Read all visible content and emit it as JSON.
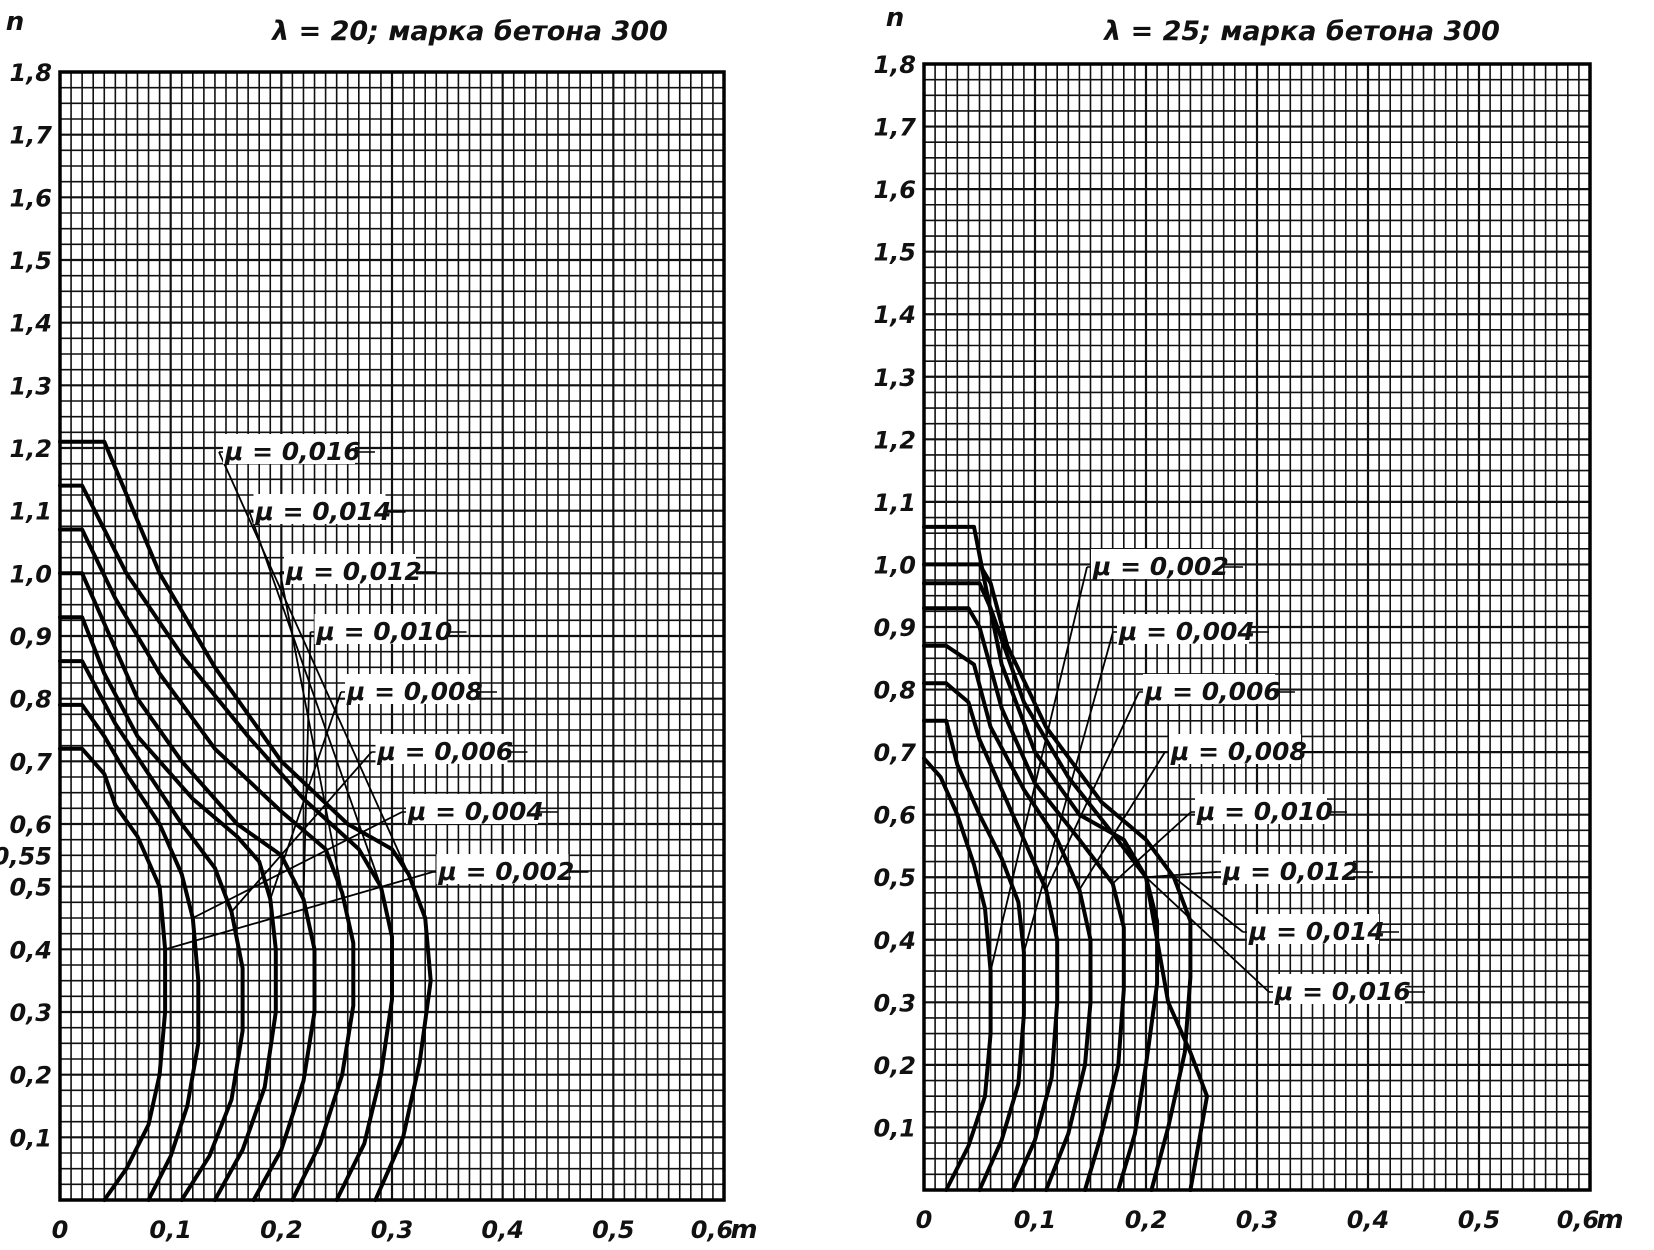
{
  "chart_data": [
    {
      "type": "line",
      "title": "λ = 20; марка бетона 300",
      "xlabel": "m",
      "ylabel": "n",
      "xlim": [
        0,
        0.6
      ],
      "ylim": [
        0,
        1.8
      ],
      "x_ticks": [
        "0",
        "0,1",
        "0,2",
        "0,3",
        "0,4",
        "0,5",
        "0,6"
      ],
      "y_ticks": [
        "0,1",
        "0,2",
        "0,3",
        "0,4",
        "0,5",
        "0,55",
        "0,6",
        "0,7",
        "0,8",
        "0,9",
        "1,0",
        "1,1",
        "1,2",
        "1,3",
        "1,4",
        "1,5",
        "1,6",
        "1,7",
        "1,8"
      ],
      "grid": true,
      "series": [
        {
          "name": "μ = 0,002",
          "points": [
            [
              0.04,
              0
            ],
            [
              0.06,
              0.05
            ],
            [
              0.08,
              0.12
            ],
            [
              0.09,
              0.2
            ],
            [
              0.095,
              0.3
            ],
            [
              0.095,
              0.4
            ],
            [
              0.09,
              0.5
            ],
            [
              0.07,
              0.58
            ],
            [
              0.05,
              0.63
            ],
            [
              0.04,
              0.68
            ],
            [
              0.02,
              0.72
            ],
            [
              0,
              0.72
            ]
          ]
        },
        {
          "name": "μ = 0,004",
          "points": [
            [
              0.08,
              0
            ],
            [
              0.1,
              0.07
            ],
            [
              0.115,
              0.15
            ],
            [
              0.125,
              0.25
            ],
            [
              0.125,
              0.35
            ],
            [
              0.12,
              0.45
            ],
            [
              0.11,
              0.52
            ],
            [
              0.09,
              0.6
            ],
            [
              0.06,
              0.68
            ],
            [
              0.04,
              0.74
            ],
            [
              0.02,
              0.79
            ],
            [
              0,
              0.79
            ]
          ]
        },
        {
          "name": "μ = 0,006",
          "points": [
            [
              0.11,
              0
            ],
            [
              0.135,
              0.07
            ],
            [
              0.155,
              0.16
            ],
            [
              0.165,
              0.27
            ],
            [
              0.165,
              0.37
            ],
            [
              0.155,
              0.46
            ],
            [
              0.14,
              0.53
            ],
            [
              0.11,
              0.6
            ],
            [
              0.08,
              0.68
            ],
            [
              0.05,
              0.76
            ],
            [
              0.02,
              0.86
            ],
            [
              0,
              0.86
            ]
          ]
        },
        {
          "name": "μ = 0,008",
          "points": [
            [
              0.14,
              0
            ],
            [
              0.165,
              0.08
            ],
            [
              0.185,
              0.18
            ],
            [
              0.195,
              0.3
            ],
            [
              0.195,
              0.4
            ],
            [
              0.19,
              0.48
            ],
            [
              0.18,
              0.54
            ],
            [
              0.16,
              0.58
            ],
            [
              0.12,
              0.64
            ],
            [
              0.07,
              0.74
            ],
            [
              0.04,
              0.84
            ],
            [
              0.02,
              0.93
            ],
            [
              0,
              0.93
            ]
          ]
        },
        {
          "name": "μ = 0,010",
          "points": [
            [
              0.175,
              0
            ],
            [
              0.2,
              0.08
            ],
            [
              0.22,
              0.19
            ],
            [
              0.23,
              0.3
            ],
            [
              0.23,
              0.4
            ],
            [
              0.22,
              0.48
            ],
            [
              0.2,
              0.55
            ],
            [
              0.16,
              0.6
            ],
            [
              0.11,
              0.7
            ],
            [
              0.07,
              0.8
            ],
            [
              0.04,
              0.92
            ],
            [
              0.02,
              1.0
            ],
            [
              0,
              1.0
            ]
          ]
        },
        {
          "name": "μ = 0,012",
          "points": [
            [
              0.21,
              0
            ],
            [
              0.235,
              0.09
            ],
            [
              0.255,
              0.2
            ],
            [
              0.265,
              0.31
            ],
            [
              0.265,
              0.41
            ],
            [
              0.255,
              0.49
            ],
            [
              0.24,
              0.56
            ],
            [
              0.2,
              0.62
            ],
            [
              0.14,
              0.72
            ],
            [
              0.09,
              0.84
            ],
            [
              0.05,
              0.96
            ],
            [
              0.02,
              1.07
            ],
            [
              0,
              1.07
            ]
          ]
        },
        {
          "name": "μ = 0,014",
          "points": [
            [
              0.25,
              0
            ],
            [
              0.275,
              0.09
            ],
            [
              0.29,
              0.2
            ],
            [
              0.3,
              0.32
            ],
            [
              0.3,
              0.42
            ],
            [
              0.29,
              0.5
            ],
            [
              0.27,
              0.56
            ],
            [
              0.22,
              0.64
            ],
            [
              0.17,
              0.74
            ],
            [
              0.11,
              0.87
            ],
            [
              0.06,
              1.0
            ],
            [
              0.02,
              1.14
            ],
            [
              0,
              1.14
            ]
          ]
        },
        {
          "name": "μ = 0,016",
          "points": [
            [
              0.285,
              0
            ],
            [
              0.31,
              0.1
            ],
            [
              0.325,
              0.22
            ],
            [
              0.335,
              0.35
            ],
            [
              0.33,
              0.45
            ],
            [
              0.315,
              0.52
            ],
            [
              0.3,
              0.56
            ],
            [
              0.26,
              0.6
            ],
            [
              0.2,
              0.7
            ],
            [
              0.14,
              0.85
            ],
            [
              0.09,
              1.0
            ],
            [
              0.04,
              1.21
            ],
            [
              0,
              1.21
            ]
          ]
        }
      ]
    },
    {
      "type": "line",
      "title": "λ = 25; марка бетона 300",
      "xlabel": "m",
      "ylabel": "n",
      "xlim": [
        0,
        0.6
      ],
      "ylim": [
        0,
        1.8
      ],
      "x_ticks": [
        "0",
        "0,1",
        "0,2",
        "0,3",
        "0,4",
        "0,5",
        "0,6"
      ],
      "y_ticks": [
        "0,1",
        "0,2",
        "0,3",
        "0,4",
        "0,5",
        "0,6",
        "0,7",
        "0,8",
        "0,9",
        "1,0",
        "1,1",
        "1,2",
        "1,3",
        "1,4",
        "1,5",
        "1,6",
        "1,7",
        "1,8"
      ],
      "grid": true,
      "series": [
        {
          "name": "μ = 0,002",
          "points": [
            [
              0.02,
              0
            ],
            [
              0.04,
              0.07
            ],
            [
              0.055,
              0.15
            ],
            [
              0.06,
              0.25
            ],
            [
              0.06,
              0.35
            ],
            [
              0.055,
              0.45
            ],
            [
              0.045,
              0.52
            ],
            [
              0.03,
              0.6
            ],
            [
              0.015,
              0.66
            ],
            [
              0,
              0.69
            ]
          ]
        },
        {
          "name": "μ = 0,004",
          "points": [
            [
              0.05,
              0
            ],
            [
              0.07,
              0.08
            ],
            [
              0.085,
              0.17
            ],
            [
              0.09,
              0.28
            ],
            [
              0.09,
              0.38
            ],
            [
              0.085,
              0.46
            ],
            [
              0.07,
              0.53
            ],
            [
              0.05,
              0.6
            ],
            [
              0.03,
              0.68
            ],
            [
              0.02,
              0.75
            ],
            [
              0,
              0.75
            ]
          ]
        },
        {
          "name": "μ = 0,006",
          "points": [
            [
              0.08,
              0
            ],
            [
              0.1,
              0.08
            ],
            [
              0.115,
              0.18
            ],
            [
              0.12,
              0.3
            ],
            [
              0.12,
              0.4
            ],
            [
              0.11,
              0.48
            ],
            [
              0.09,
              0.56
            ],
            [
              0.07,
              0.64
            ],
            [
              0.05,
              0.72
            ],
            [
              0.04,
              0.78
            ],
            [
              0.02,
              0.81
            ],
            [
              0,
              0.81
            ]
          ]
        },
        {
          "name": "μ = 0,008",
          "points": [
            [
              0.11,
              0
            ],
            [
              0.13,
              0.09
            ],
            [
              0.145,
              0.2
            ],
            [
              0.15,
              0.3
            ],
            [
              0.15,
              0.4
            ],
            [
              0.14,
              0.48
            ],
            [
              0.12,
              0.56
            ],
            [
              0.09,
              0.64
            ],
            [
              0.06,
              0.74
            ],
            [
              0.045,
              0.84
            ],
            [
              0.02,
              0.87
            ],
            [
              0,
              0.87
            ]
          ]
        },
        {
          "name": "μ = 0,010",
          "points": [
            [
              0.145,
              0
            ],
            [
              0.16,
              0.09
            ],
            [
              0.175,
              0.2
            ],
            [
              0.18,
              0.32
            ],
            [
              0.18,
              0.42
            ],
            [
              0.17,
              0.49
            ],
            [
              0.14,
              0.56
            ],
            [
              0.1,
              0.65
            ],
            [
              0.07,
              0.77
            ],
            [
              0.05,
              0.9
            ],
            [
              0.04,
              0.93
            ],
            [
              0,
              0.93
            ]
          ]
        },
        {
          "name": "μ = 0,012",
          "points": [
            [
              0.175,
              0
            ],
            [
              0.19,
              0.09
            ],
            [
              0.2,
              0.2
            ],
            [
              0.21,
              0.33
            ],
            [
              0.21,
              0.43
            ],
            [
              0.2,
              0.5
            ],
            [
              0.17,
              0.57
            ],
            [
              0.13,
              0.66
            ],
            [
              0.09,
              0.78
            ],
            [
              0.06,
              0.93
            ],
            [
              0.05,
              0.97
            ],
            [
              0,
              0.97
            ]
          ]
        },
        {
          "name": "μ = 0,014",
          "points": [
            [
              0.205,
              0
            ],
            [
              0.22,
              0.1
            ],
            [
              0.235,
              0.22
            ],
            [
              0.24,
              0.34
            ],
            [
              0.24,
              0.43
            ],
            [
              0.225,
              0.5
            ],
            [
              0.2,
              0.56
            ],
            [
              0.16,
              0.62
            ],
            [
              0.11,
              0.74
            ],
            [
              0.075,
              0.87
            ],
            [
              0.06,
              0.97
            ],
            [
              0.05,
              1.0
            ],
            [
              0,
              1.0
            ]
          ]
        },
        {
          "name": "μ = 0,016",
          "points": [
            [
              0.24,
              0
            ],
            [
              0.25,
              0.1
            ],
            [
              0.255,
              0.15
            ],
            [
              0.24,
              0.22
            ],
            [
              0.22,
              0.3
            ],
            [
              0.21,
              0.4
            ],
            [
              0.2,
              0.5
            ],
            [
              0.18,
              0.56
            ],
            [
              0.14,
              0.6
            ],
            [
              0.1,
              0.7
            ],
            [
              0.07,
              0.84
            ],
            [
              0.055,
              0.97
            ],
            [
              0.045,
              1.06
            ],
            [
              0,
              1.06
            ]
          ]
        }
      ]
    }
  ]
}
